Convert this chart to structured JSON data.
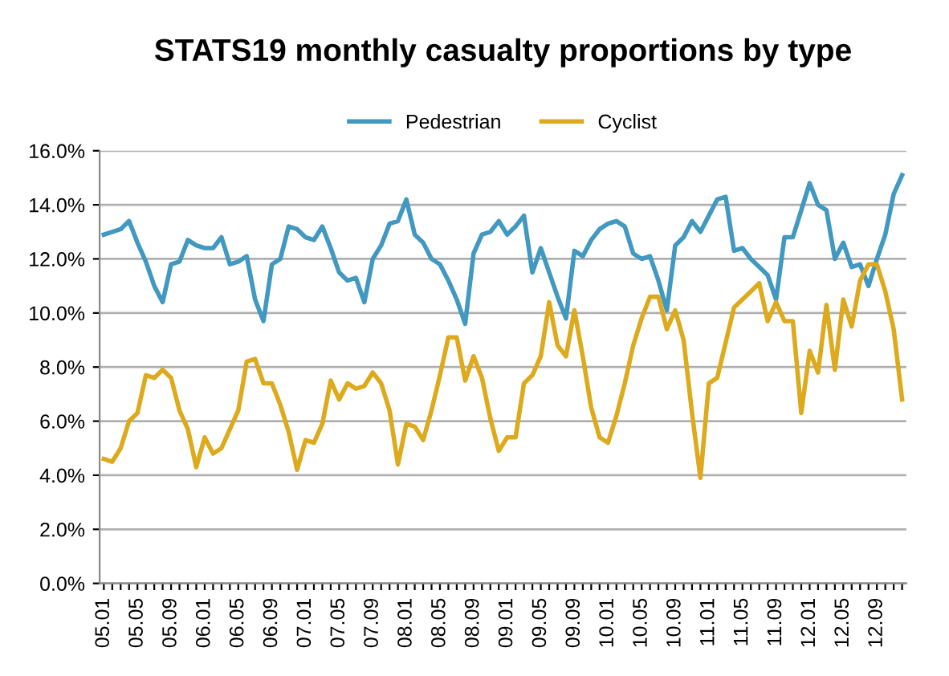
{
  "chart_data": {
    "type": "line",
    "title": "STATS19 monthly casualty proportions by type",
    "categories": [
      "05.01",
      null,
      null,
      null,
      "05.05",
      null,
      null,
      null,
      "05.09",
      null,
      null,
      null,
      "06.01",
      null,
      null,
      null,
      "06.05",
      null,
      null,
      null,
      "06.09",
      null,
      null,
      null,
      "07.01",
      null,
      null,
      null,
      "07.05",
      null,
      null,
      null,
      "07.09",
      null,
      null,
      null,
      "08.01",
      null,
      null,
      null,
      "08.05",
      null,
      null,
      null,
      "08.09",
      null,
      null,
      null,
      "09.01",
      null,
      null,
      null,
      "09.05",
      null,
      null,
      null,
      "09.09",
      null,
      null,
      null,
      "10.01",
      null,
      null,
      null,
      "10.05",
      null,
      null,
      null,
      "10.09",
      null,
      null,
      null,
      "11.01",
      null,
      null,
      null,
      "11.05",
      null,
      null,
      null,
      "11.09",
      null,
      null,
      null,
      "12.01",
      null,
      null,
      null,
      "12.05",
      null,
      null,
      null,
      "12.09",
      null,
      null,
      null
    ],
    "series": [
      {
        "name": "Pedestrian",
        "color": "#4198c0",
        "values": [
          12.9,
          13.0,
          13.1,
          13.4,
          12.6,
          11.9,
          11.0,
          10.4,
          11.8,
          11.9,
          12.7,
          12.5,
          12.4,
          12.4,
          12.8,
          11.8,
          11.9,
          12.1,
          10.5,
          9.7,
          11.8,
          12.0,
          13.2,
          13.1,
          12.8,
          12.7,
          13.2,
          12.4,
          11.5,
          11.2,
          11.3,
          10.4,
          12.0,
          12.5,
          13.3,
          13.4,
          14.2,
          12.9,
          12.6,
          12.0,
          11.8,
          11.2,
          10.5,
          9.6,
          12.2,
          12.9,
          13.0,
          13.4,
          12.9,
          13.2,
          13.6,
          11.5,
          12.4,
          11.5,
          10.6,
          9.8,
          12.3,
          12.1,
          12.7,
          13.1,
          13.3,
          13.4,
          13.2,
          12.2,
          12.0,
          12.1,
          11.2,
          10.1,
          12.5,
          12.8,
          13.4,
          13.0,
          13.6,
          14.2,
          14.3,
          12.3,
          12.4,
          12.0,
          11.7,
          11.4,
          10.5,
          12.8,
          12.8,
          13.8,
          14.8,
          14.0,
          13.8,
          12.0,
          12.6,
          11.7,
          11.8,
          11.0,
          12.0,
          12.9,
          14.4,
          15.1
        ]
      },
      {
        "name": "Cyclist",
        "color": "#dcaa1c",
        "values": [
          4.6,
          4.5,
          5.0,
          6.0,
          6.3,
          7.7,
          7.6,
          7.9,
          7.6,
          6.4,
          5.7,
          4.3,
          5.4,
          4.8,
          5.0,
          5.7,
          6.4,
          8.2,
          8.3,
          7.4,
          7.4,
          6.6,
          5.6,
          4.2,
          5.3,
          5.2,
          5.9,
          7.5,
          6.8,
          7.4,
          7.2,
          7.3,
          7.8,
          7.4,
          6.4,
          4.4,
          5.9,
          5.8,
          5.3,
          6.4,
          7.7,
          9.1,
          9.1,
          7.5,
          8.4,
          7.6,
          6.1,
          4.9,
          5.4,
          5.4,
          7.4,
          7.7,
          8.4,
          10.4,
          8.8,
          8.4,
          10.1,
          8.4,
          6.5,
          5.4,
          5.2,
          6.2,
          7.4,
          8.8,
          9.8,
          10.6,
          10.6,
          9.4,
          10.1,
          9.0,
          6.3,
          3.9,
          7.4,
          7.6,
          8.9,
          10.2,
          10.5,
          10.8,
          11.1,
          9.7,
          10.4,
          9.7,
          9.7,
          6.3,
          8.6,
          7.8,
          10.3,
          7.9,
          10.5,
          9.5,
          11.2,
          11.8,
          11.8,
          10.8,
          9.4,
          6.8
        ]
      }
    ],
    "ylim": [
      0,
      16
    ],
    "yticks": [
      {
        "value": 0,
        "label": "0.0%"
      },
      {
        "value": 2,
        "label": "2.0%"
      },
      {
        "value": 4,
        "label": "4.0%"
      },
      {
        "value": 6,
        "label": "6.0%"
      },
      {
        "value": 8,
        "label": "8.0%"
      },
      {
        "value": 10,
        "label": "10.0%"
      },
      {
        "value": 12,
        "label": "12.0%"
      },
      {
        "value": 14,
        "label": "14.0%"
      },
      {
        "value": 16,
        "label": "16.0%"
      }
    ],
    "grid": "y",
    "legend": "top",
    "marker": "none",
    "line_style": "solid"
  }
}
